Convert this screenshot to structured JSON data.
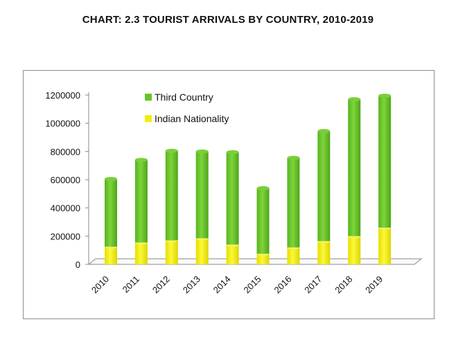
{
  "page": {
    "title": "CHART: 2.3 TOURIST ARRIVALS BY COUNTRY, 2010-2019"
  },
  "chart_data": {
    "type": "bar",
    "stacked": true,
    "title": "CHART: 2.3 TOURIST ARRIVALS BY COUNTRY, 2010-2019",
    "xlabel": "",
    "ylabel": "",
    "categories": [
      "2010",
      "2011",
      "2012",
      "2013",
      "2014",
      "2015",
      "2016",
      "2017",
      "2018",
      "2019"
    ],
    "series": [
      {
        "name": "Indian Nationality",
        "color": "#f2ee10",
        "values": [
          125000,
          155000,
          170000,
          185000,
          140000,
          75000,
          120000,
          165000,
          200000,
          260000
        ]
      },
      {
        "name": "Third Country",
        "color": "#66c42a",
        "values": [
          480000,
          585000,
          635000,
          615000,
          655000,
          465000,
          635000,
          780000,
          970000,
          935000
        ]
      }
    ],
    "yticks": [
      "0",
      "200000",
      "400000",
      "600000",
      "800000",
      "1000000",
      "1200000"
    ],
    "ylim": [
      0,
      1200000
    ],
    "grid": false,
    "legend_position": "top-left (inside plot)"
  }
}
